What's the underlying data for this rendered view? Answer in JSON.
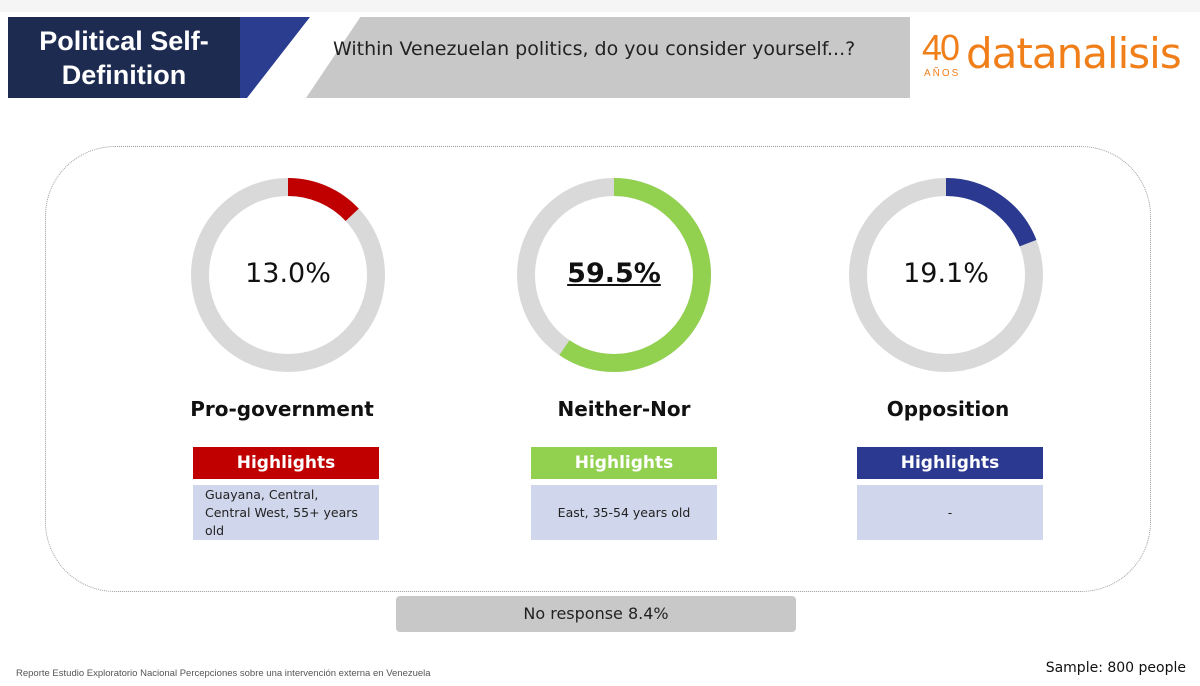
{
  "header": {
    "title_line1": "Political Self-",
    "title_line2": "Definition",
    "question": "Within Venezuelan politics, do you consider yourself...?"
  },
  "logo": {
    "number": "40",
    "anos": "AÑOS",
    "word": "datanalisis"
  },
  "colors": {
    "navy": "#1d2b50",
    "ring_bg": "#d9d9d9",
    "pro_government": "#c00000",
    "neither_nor": "#92d050",
    "opposition": "#2b3990"
  },
  "chart_data": {
    "type": "pie",
    "title": "Within Venezuelan politics, do you consider yourself...?",
    "unit": "%",
    "items": [
      {
        "category": "Pro-government",
        "value": 13.0,
        "label": "13.0%",
        "color": "#c00000",
        "highlight_title": "Highlights",
        "highlight_text": "Guayana, Central, Central West, 55+ years old"
      },
      {
        "category": "Neither-Nor",
        "value": 59.5,
        "label": "59.5%",
        "color": "#92d050",
        "highlight_title": "Highlights",
        "highlight_text": "East, 35-54 years old"
      },
      {
        "category": "Opposition",
        "value": 19.1,
        "label": "19.1%",
        "color": "#2b3990",
        "highlight_title": "Highlights",
        "highlight_text": "-"
      }
    ],
    "no_response": {
      "label": "No response",
      "value": 8.4,
      "text": "No response 8.4%"
    }
  },
  "footer": {
    "source": "Reporte Estudio Exploratorio Nacional Percepciones sobre una intervención externa en Venezuela",
    "sample": "Sample: 800 people"
  }
}
